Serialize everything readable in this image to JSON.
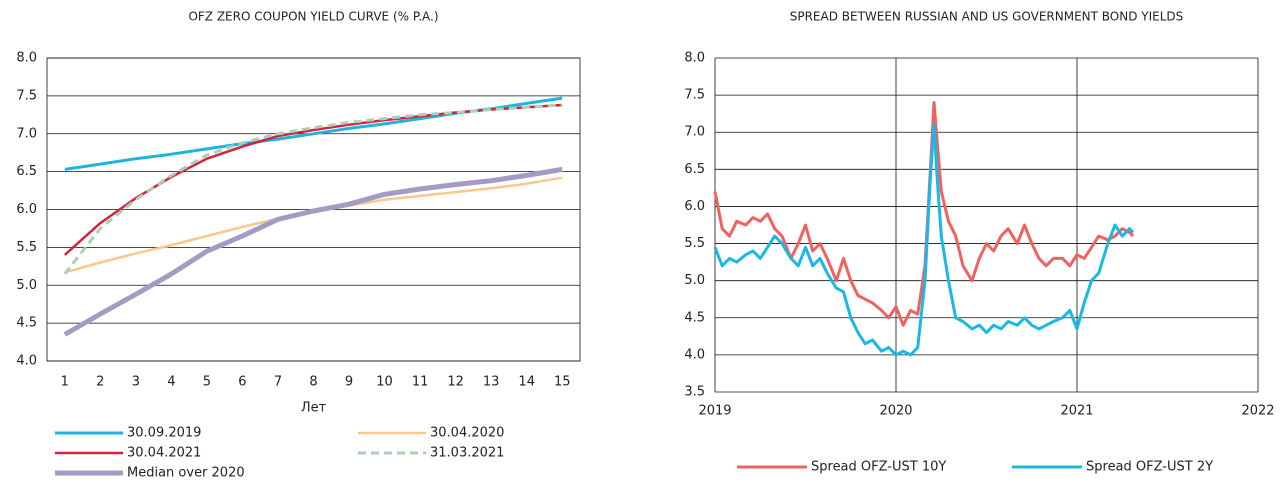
{
  "chart_data": [
    {
      "type": "line",
      "title": "OFZ ZERO COUPON YIELD CURVE (% P.A.)",
      "xlabel": "Лет",
      "categories": [
        "1",
        "2",
        "3",
        "4",
        "5",
        "6",
        "7",
        "8",
        "9",
        "10",
        "11",
        "12",
        "13",
        "14",
        "15"
      ],
      "ylim": [
        4,
        8
      ],
      "yticks": [
        {
          "value": 4,
          "label": "4.0"
        },
        4.5,
        {
          "value": 5,
          "label": "5.0"
        },
        5.5,
        {
          "value": 6,
          "label": "6.0"
        },
        6.5,
        {
          "value": 7,
          "label": "7.0"
        },
        7.5,
        {
          "value": 8,
          "label": "8.0"
        }
      ],
      "grid": true,
      "series": [
        {
          "name": "30.09.2019",
          "color": "#1fb3e3",
          "values": [
            6.53,
            6.6,
            6.67,
            6.73,
            6.8,
            6.87,
            6.93,
            7.0,
            7.07,
            7.13,
            7.2,
            7.27,
            7.33,
            7.4,
            7.47
          ]
        },
        {
          "name": "30.04.2020",
          "color": "#f9c98a",
          "values": [
            5.17,
            5.3,
            5.42,
            5.53,
            5.65,
            5.77,
            5.88,
            5.97,
            6.05,
            6.13,
            6.18,
            6.23,
            6.28,
            6.34,
            6.42
          ]
        },
        {
          "name": "30.04.2021",
          "color": "#d7213d",
          "values": [
            5.4,
            5.82,
            6.15,
            6.43,
            6.67,
            6.83,
            6.97,
            7.05,
            7.12,
            7.18,
            7.23,
            7.28,
            7.32,
            7.35,
            7.38
          ]
        },
        {
          "name": "31.03.2021",
          "color": "#a9d2b2",
          "dashed": true,
          "values": [
            5.15,
            5.75,
            6.13,
            6.45,
            6.72,
            6.88,
            7.0,
            7.08,
            7.15,
            7.2,
            7.25,
            7.28,
            7.32,
            7.35,
            7.38
          ]
        },
        {
          "name": "Median over 2020",
          "color": "#a49bc4",
          "values": [
            4.35,
            4.62,
            4.88,
            5.15,
            5.45,
            5.65,
            5.87,
            5.98,
            6.07,
            6.2,
            6.27,
            6.33,
            6.38,
            6.45,
            6.53
          ]
        }
      ]
    },
    {
      "type": "line",
      "title": "SPREAD BETWEEN RUSSIAN AND US GOVERNMENT BOND YIELDS",
      "x": [
        2019.0,
        2019.04,
        2019.08,
        2019.12,
        2019.17,
        2019.21,
        2019.25,
        2019.29,
        2019.33,
        2019.37,
        2019.42,
        2019.46,
        2019.5,
        2019.54,
        2019.58,
        2019.62,
        2019.67,
        2019.71,
        2019.75,
        2019.79,
        2019.83,
        2019.87,
        2019.92,
        2019.96,
        2020.0,
        2020.04,
        2020.08,
        2020.12,
        2020.16,
        2020.19,
        2020.21,
        2020.23,
        2020.25,
        2020.29,
        2020.33,
        2020.37,
        2020.42,
        2020.46,
        2020.5,
        2020.54,
        2020.58,
        2020.62,
        2020.67,
        2020.71,
        2020.75,
        2020.79,
        2020.83,
        2020.87,
        2020.92,
        2020.96,
        2021.0,
        2021.04,
        2021.08,
        2021.12,
        2021.17,
        2021.21,
        2021.25,
        2021.29,
        2021.31
      ],
      "xlim": [
        2019,
        2022
      ],
      "xticks": [
        2019,
        2020,
        2021,
        2022
      ],
      "ylim": [
        3.5,
        8
      ],
      "yticks": [
        3.5,
        {
          "value": 4,
          "label": "4.0"
        },
        4.5,
        {
          "value": 5,
          "label": "5.0"
        },
        5.5,
        {
          "value": 6,
          "label": "6.0"
        },
        6.5,
        {
          "value": 7,
          "label": "7.0"
        },
        7.5,
        {
          "value": 8,
          "label": "8.0"
        }
      ],
      "grid": true,
      "series": [
        {
          "name": "Spread OFZ-UST 10Y",
          "color": "#f0625f",
          "values": [
            6.2,
            5.7,
            5.6,
            5.8,
            5.75,
            5.85,
            5.8,
            5.9,
            5.7,
            5.6,
            5.3,
            5.5,
            5.75,
            5.4,
            5.5,
            5.3,
            5.0,
            5.3,
            5.0,
            4.8,
            4.75,
            4.7,
            4.6,
            4.5,
            4.65,
            4.4,
            4.6,
            4.55,
            5.2,
            6.5,
            7.4,
            6.8,
            6.2,
            5.8,
            5.6,
            5.2,
            5.0,
            5.3,
            5.5,
            5.4,
            5.6,
            5.7,
            5.5,
            5.75,
            5.5,
            5.3,
            5.2,
            5.3,
            5.3,
            5.2,
            5.35,
            5.3,
            5.45,
            5.6,
            5.55,
            5.6,
            5.7,
            5.65,
            5.6
          ]
        },
        {
          "name": "Spread OFZ-UST 2Y",
          "color": "#1ab8e6",
          "values": [
            5.45,
            5.2,
            5.3,
            5.25,
            5.35,
            5.4,
            5.3,
            5.45,
            5.6,
            5.5,
            5.3,
            5.2,
            5.45,
            5.2,
            5.3,
            5.1,
            4.9,
            4.85,
            4.5,
            4.3,
            4.15,
            4.2,
            4.05,
            4.1,
            4.0,
            4.05,
            4.0,
            4.1,
            5.0,
            6.4,
            7.1,
            6.3,
            5.6,
            5.0,
            4.5,
            4.45,
            4.35,
            4.4,
            4.3,
            4.4,
            4.35,
            4.45,
            4.4,
            4.5,
            4.4,
            4.35,
            4.4,
            4.45,
            4.5,
            4.6,
            4.35,
            4.7,
            5.0,
            5.1,
            5.5,
            5.75,
            5.6,
            5.7,
            5.65
          ]
        }
      ]
    }
  ]
}
